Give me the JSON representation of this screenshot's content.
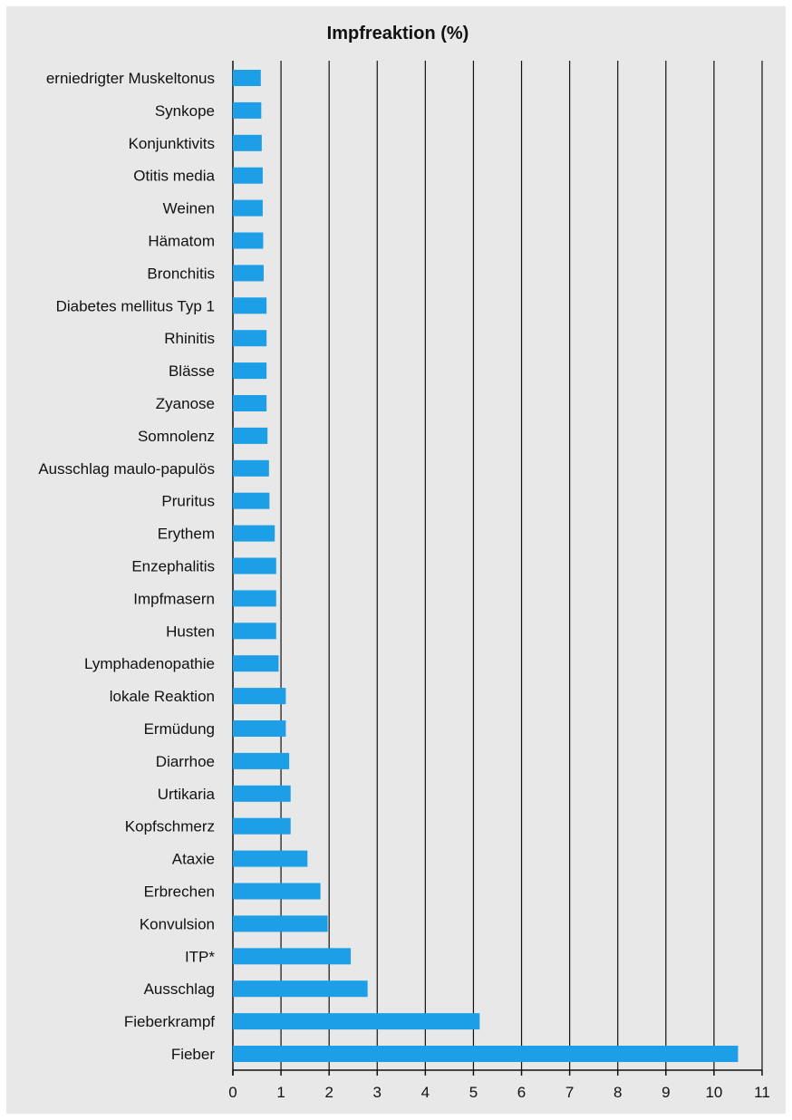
{
  "chart_data": {
    "type": "bar",
    "orientation": "horizontal",
    "title": "Impfreaktion (%)",
    "xlim": [
      0,
      11
    ],
    "xticks": [
      0,
      1,
      2,
      3,
      4,
      5,
      6,
      7,
      8,
      9,
      10,
      11
    ],
    "grid": true,
    "bar_color": "#1c9fe6",
    "categories": [
      "erniedrigter Muskeltonus",
      "Synkope",
      "Konjunktivits",
      "Otitis media",
      "Weinen",
      "Hämatom",
      "Bronchitis",
      "Diabetes mellitus Typ 1",
      "Rhinitis",
      "Blässe",
      "Zyanose",
      "Somnolenz",
      "Ausschlag maulo-papulös",
      "Pruritus",
      "Erythem",
      "Enzephalitis",
      "Impfmasern",
      "Husten",
      "Lymphadenopathie",
      "lokale Reaktion",
      "Ermüdung",
      "Diarrhoe",
      "Urtikaria",
      "Kopfschmerz",
      "Ataxie",
      "Erbrechen",
      "Konvulsion",
      "ITP*",
      "Ausschlag",
      "Fieberkrampf",
      "Fieber"
    ],
    "values": [
      0.58,
      0.59,
      0.6,
      0.62,
      0.62,
      0.63,
      0.64,
      0.7,
      0.7,
      0.7,
      0.7,
      0.72,
      0.75,
      0.76,
      0.87,
      0.9,
      0.9,
      0.9,
      0.95,
      1.1,
      1.1,
      1.17,
      1.2,
      1.2,
      1.55,
      1.82,
      1.97,
      2.45,
      2.8,
      5.13,
      10.5
    ]
  }
}
